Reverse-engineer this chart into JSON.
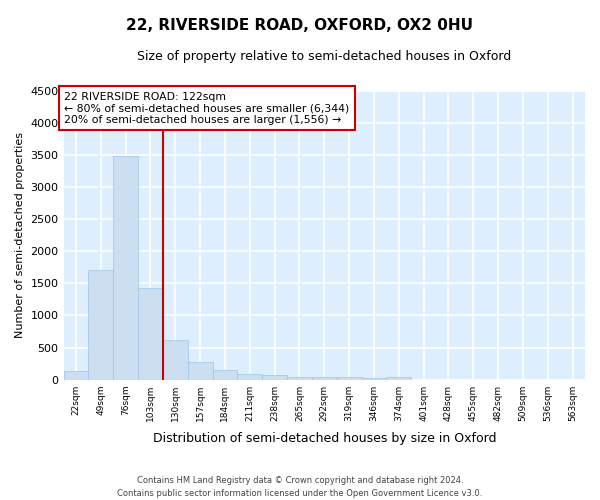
{
  "title": "22, RIVERSIDE ROAD, OXFORD, OX2 0HU",
  "subtitle": "Size of property relative to semi-detached houses in Oxford",
  "xlabel": "Distribution of semi-detached houses by size in Oxford",
  "ylabel": "Number of semi-detached properties",
  "property_label": "22 RIVERSIDE ROAD: 122sqm",
  "pct_smaller": 80,
  "pct_larger": 20,
  "count_smaller": "6,344",
  "count_larger": "1,556",
  "bin_edges": [
    22,
    49,
    76,
    103,
    130,
    157,
    184,
    211,
    238,
    265,
    292,
    319,
    346,
    373,
    400,
    427,
    454,
    481,
    508,
    535,
    562,
    589
  ],
  "bin_counts": [
    140,
    1700,
    3480,
    1430,
    620,
    280,
    155,
    95,
    65,
    45,
    40,
    35,
    25,
    40,
    0,
    0,
    0,
    0,
    0,
    0,
    0,
    0
  ],
  "bar_color": "#ccdff0",
  "bar_edge_color": "#a0c4e8",
  "vline_x": 130,
  "vline_color": "#cc0000",
  "box_edge_color": "#cc0000",
  "background_color": "#ddeeff",
  "grid_color": "#ffffff",
  "ylim": [
    0,
    4500
  ],
  "yticks": [
    0,
    500,
    1000,
    1500,
    2000,
    2500,
    3000,
    3500,
    4000,
    4500
  ],
  "x_tick_labels": [
    "22sqm",
    "49sqm",
    "76sqm",
    "103sqm",
    "130sqm",
    "157sqm",
    "184sqm",
    "211sqm",
    "238sqm",
    "265sqm",
    "292sqm",
    "319sqm",
    "346sqm",
    "374sqm",
    "401sqm",
    "428sqm",
    "455sqm",
    "482sqm",
    "509sqm",
    "536sqm",
    "563sqm"
  ],
  "footer": "Contains HM Land Registry data © Crown copyright and database right 2024.\nContains public sector information licensed under the Open Government Licence v3.0."
}
